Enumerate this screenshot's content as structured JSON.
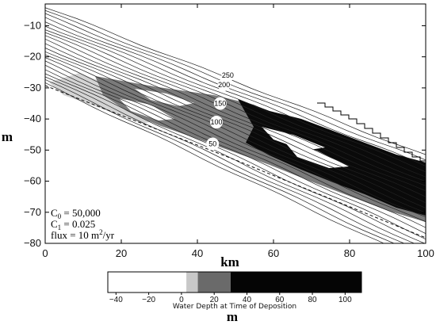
{
  "chart_data": {
    "type": "area",
    "xlabel": "km",
    "ylabel": "m",
    "xlim": [
      0,
      100
    ],
    "ylim": [
      -80,
      -3
    ],
    "x_ticks": [
      "0",
      "20",
      "40",
      "60",
      "80",
      "100"
    ],
    "x_tick_values": [
      0,
      20,
      40,
      60,
      80,
      100
    ],
    "y_ticks": [
      "−10",
      "−20",
      "−30",
      "−40",
      "−50",
      "−60",
      "−70",
      "−80"
    ],
    "y_tick_values": [
      -10,
      -20,
      -30,
      -40,
      -50,
      -60,
      -70,
      -80
    ],
    "contour_labels": [
      {
        "text": "250",
        "x": 48,
        "y": -26
      },
      {
        "text": "200",
        "x": 47,
        "y": -29
      },
      {
        "text": "150",
        "x": 46,
        "y": -35
      },
      {
        "text": "100",
        "x": 45,
        "y": -41
      },
      {
        "text": "50",
        "x": 44,
        "y": -48
      }
    ],
    "parameters": {
      "c0_label": "C",
      "c0_sub": "0",
      "c0_value": " = 50,000",
      "c1_label": "C",
      "c1_sub": "1",
      "c1_value": " = 0.025",
      "flux_prefix": "flux = 10 m",
      "flux_sup": "2",
      "flux_suffix": "/yr"
    },
    "colorbar": {
      "caption": "Water Depth at Time of Deposition",
      "unit": "m",
      "ticks": [
        "−40",
        "−20",
        "0",
        "20",
        "40",
        "60",
        "80",
        "100"
      ],
      "tick_values": [
        -40,
        -20,
        0,
        20,
        40,
        60,
        80,
        100
      ],
      "range": [
        -45,
        110
      ],
      "bands": [
        {
          "from": -45,
          "to": 3,
          "color": "#ffffff"
        },
        {
          "from": 3,
          "to": 10,
          "color": "#c8c8c8"
        },
        {
          "from": 10,
          "to": 30,
          "color": "#6a6a6a"
        },
        {
          "from": 30,
          "to": 110,
          "color": "#050505"
        }
      ]
    }
  }
}
